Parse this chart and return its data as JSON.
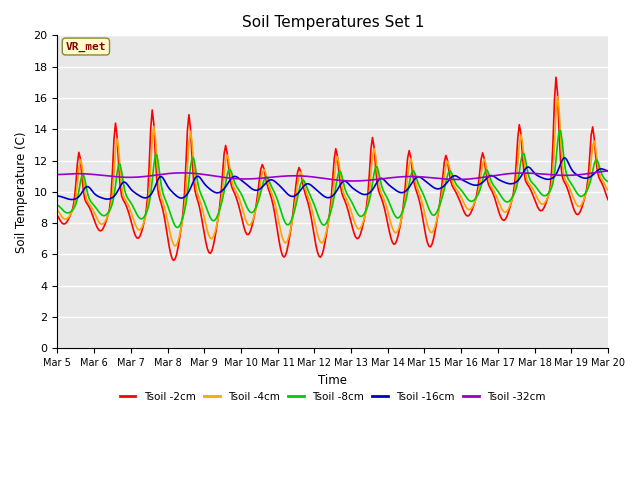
{
  "title": "Soil Temperatures Set 1",
  "xlabel": "Time",
  "ylabel": "Soil Temperature (C)",
  "ylim": [
    0,
    20
  ],
  "yticks": [
    0,
    2,
    4,
    6,
    8,
    10,
    12,
    14,
    16,
    18,
    20
  ],
  "annotation": "VR_met",
  "annotation_color": "#8B0000",
  "annotation_bg": "#FFFFCC",
  "colors": {
    "Tsoil -2cm": "#FF0000",
    "Tsoil -4cm": "#FFA500",
    "Tsoil -8cm": "#00CC00",
    "Tsoil -16cm": "#0000CC",
    "Tsoil -32cm": "#9900CC"
  },
  "bg_color": "#E8E8E8",
  "grid_color": "#FFFFFF",
  "xtick_labels": [
    "Mar 5",
    "Mar 6",
    "Mar 7",
    "Mar 8",
    "Mar 9",
    "Mar 10",
    "Mar 11",
    "Mar 12",
    "Mar 13",
    "Mar 14",
    "Mar 15",
    "Mar 16",
    "Mar 17",
    "Mar 18",
    "Mar 19",
    "Mar 20"
  ]
}
